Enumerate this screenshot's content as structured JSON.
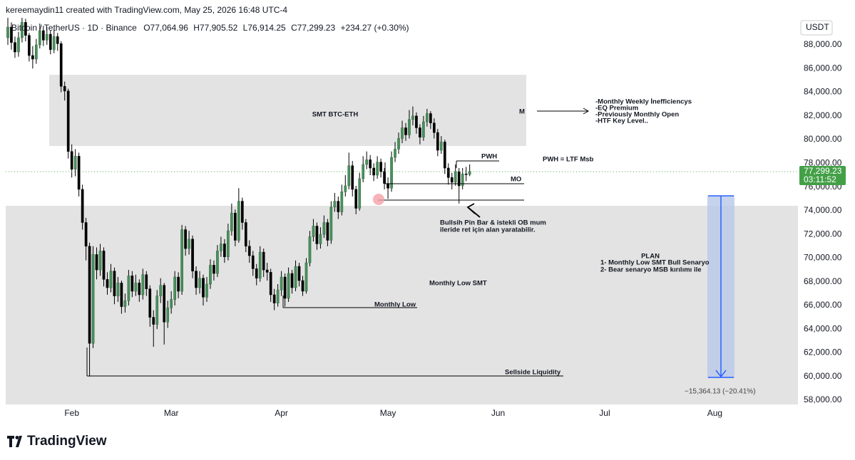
{
  "header": {
    "credit": "kereemaydin11 created with TradingView.com, May 25, 2026 16:48 UTC-4",
    "symbol": "Bitcoin / TetherUS · 1D · Binance",
    "open": "O77,064.96",
    "high": "H77,905.52",
    "low": "L76,914.25",
    "close": "C77,299.23",
    "change": "+234.27 (+0.30%)"
  },
  "price_scale": {
    "currency": "USDT",
    "last_price": "77,299.23",
    "countdown": "03:11:52"
  },
  "annotations": {
    "smt": "SMT BTC-ETH",
    "m": "M",
    "notes": [
      "-Monthly Weekly İnefficiencys",
      "-EQ Premium",
      "-Previously Monthly Open",
      "-HTF Key Level.."
    ],
    "pwh": "PWH",
    "pwh_note": "PWH = LTF Msb",
    "mo": "MO",
    "pin_bar": [
      "Bullsih Pin Bar & istekli OB mum",
      "ileride ret için alan yaratabilir."
    ],
    "plan": [
      "PLAN",
      "1- Monthly Low SMT Bull Senaryo",
      "2- Bear senaryo MSB kırılımı ile"
    ],
    "monthly_low_smt": "Monthly Low SMT",
    "monthly_low": "Monthly Low",
    "sellside": "Sellside Liquidity",
    "measure": "−15,364.13 (−20.41%)"
  },
  "logo": "TradingView",
  "chart_data": {
    "type": "candlestick",
    "up_color": "#4b8f5d",
    "down_color": "#000000",
    "xlim": [
      -0.6,
      222.4
    ],
    "xticks": [
      {
        "value": 18,
        "label": "Feb"
      },
      {
        "value": 46,
        "label": "Mar"
      },
      {
        "value": 77,
        "label": "Apr"
      },
      {
        "value": 107,
        "label": "May"
      },
      {
        "value": 138,
        "label": "Jun"
      },
      {
        "value": 168,
        "label": "Jul"
      },
      {
        "value": 199,
        "label": "Aug"
      }
    ],
    "ylim": [
      57640,
      90285
    ],
    "yticks": [
      {
        "value": 58000,
        "label": "58,000.00"
      },
      {
        "value": 60000,
        "label": "60,000.00"
      },
      {
        "value": 62000,
        "label": "62,000.00"
      },
      {
        "value": 64000,
        "label": "64,000.00"
      },
      {
        "value": 66000,
        "label": "66,000.00"
      },
      {
        "value": 68000,
        "label": "68,000.00"
      },
      {
        "value": 70000,
        "label": "70,000.00"
      },
      {
        "value": 72000,
        "label": "72,000.00"
      },
      {
        "value": 74000,
        "label": "74,000.00"
      },
      {
        "value": 76000,
        "label": "76,000.00"
      },
      {
        "value": 78000,
        "label": "78,000.00"
      },
      {
        "value": 80000,
        "label": "80,000.00"
      },
      {
        "value": 82000,
        "label": "82,000.00"
      },
      {
        "value": 84000,
        "label": "84,000.00"
      },
      {
        "value": 86000,
        "label": "86,000.00"
      },
      {
        "value": 88000,
        "label": "88,000.00"
      }
    ],
    "open": [
      88600,
      89500,
      88200,
      87400,
      88600,
      89900,
      88800,
      87100,
      86800,
      88000,
      89200,
      88400,
      88900,
      87600,
      88700,
      88100,
      84500,
      84100,
      79000,
      77500,
      78600,
      75800,
      73000,
      71000,
      62800,
      70300,
      69000,
      70600,
      68200,
      67500,
      68900,
      66800,
      67900,
      65900,
      66400,
      68500,
      67200,
      67900,
      66900,
      68600,
      67400,
      65000,
      64400,
      66800,
      67700,
      64600,
      65800,
      66500,
      68400,
      67200,
      72400,
      70800,
      71600,
      68900,
      67500,
      68300,
      66700,
      67800,
      69400,
      68700,
      70600,
      71200,
      70100,
      72300,
      73800,
      71500,
      74800,
      73000,
      71000,
      70200,
      69100,
      68300,
      70500,
      69000,
      68800,
      66900,
      66200,
      67300,
      68400,
      66600,
      68700,
      67500,
      69300,
      68100,
      67200,
      69600,
      71800,
      72700,
      71200,
      72000,
      73000,
      71500,
      74300,
      74800,
      73900,
      75600,
      76100,
      77800,
      75800,
      74200,
      76700,
      77900,
      78300,
      77600,
      77000,
      78100,
      77300,
      76300,
      75900,
      78500,
      79200,
      80100,
      81000,
      80400,
      81700,
      82000,
      81000,
      80200,
      81500,
      82200,
      81400,
      80600,
      79100,
      79800,
      77600,
      76800,
      76400,
      77300,
      76100,
      77100,
      77064.96
    ],
    "high": [
      90400,
      89900,
      88700,
      89100,
      90600,
      90200,
      89000,
      87900,
      88500,
      89800,
      89600,
      89500,
      89200,
      89300,
      89000,
      88300,
      84900,
      84300,
      79600,
      79200,
      78900,
      76200,
      73400,
      71300,
      71000,
      70900,
      71200,
      70900,
      68800,
      69500,
      69200,
      68400,
      68100,
      67000,
      69000,
      68900,
      68600,
      68200,
      69100,
      68900,
      67700,
      65600,
      67300,
      68300,
      67900,
      66400,
      67200,
      68900,
      68800,
      72800,
      72700,
      72300,
      71900,
      69300,
      68900,
      68600,
      68400,
      69900,
      69800,
      71100,
      71800,
      71600,
      72900,
      74600,
      74100,
      75900,
      75100,
      73300,
      71500,
      70600,
      69500,
      71000,
      70800,
      69600,
      69100,
      67400,
      67800,
      68900,
      68700,
      69200,
      69000,
      69800,
      69600,
      68500,
      70000,
      72300,
      73300,
      73000,
      72600,
      73600,
      73300,
      74800,
      75500,
      75200,
      76200,
      77000,
      78900,
      78200,
      76100,
      77200,
      78600,
      79000,
      78700,
      78000,
      78600,
      78400,
      77600,
      76800,
      79000,
      79800,
      80600,
      81600,
      81400,
      82500,
      82800,
      82300,
      81300,
      82000,
      82600,
      82400,
      81800,
      80900,
      80300,
      80000,
      78000,
      77200,
      77900,
      77600,
      77600,
      77700,
      77905.52
    ],
    "low": [
      88000,
      87600,
      86900,
      87000,
      88200,
      88300,
      86600,
      86000,
      86400,
      87700,
      87900,
      88000,
      87200,
      87300,
      87500,
      84000,
      83300,
      78400,
      76800,
      76900,
      75200,
      72400,
      69800,
      60000,
      62400,
      68200,
      68500,
      67600,
      66900,
      67100,
      66100,
      66300,
      65300,
      65400,
      66000,
      66700,
      66800,
      66300,
      66500,
      66800,
      64200,
      62500,
      64000,
      66200,
      62700,
      64100,
      65300,
      66000,
      66600,
      66900,
      70200,
      70300,
      68300,
      66900,
      67000,
      66000,
      66300,
      67400,
      68100,
      68400,
      70100,
      69600,
      69800,
      71900,
      71000,
      71300,
      72400,
      70500,
      69600,
      68500,
      67700,
      68000,
      68400,
      68100,
      66300,
      65600,
      65900,
      66800,
      65900,
      66300,
      67000,
      67200,
      67600,
      66800,
      67000,
      69300,
      71400,
      70700,
      70800,
      71700,
      71000,
      71200,
      73900,
      73300,
      73600,
      75200,
      75800,
      75200,
      73700,
      74000,
      76400,
      77500,
      77000,
      76500,
      76700,
      76800,
      75800,
      75000,
      75600,
      78100,
      78800,
      79700,
      79900,
      80100,
      81200,
      80500,
      79600,
      79900,
      81100,
      80900,
      80100,
      78600,
      78800,
      77100,
      76200,
      75800,
      76100,
      74600,
      75800,
      76500,
      76914.25
    ],
    "close": [
      89500,
      88200,
      87400,
      88600,
      89900,
      88800,
      87100,
      86800,
      88000,
      89200,
      88400,
      88900,
      87600,
      88700,
      88100,
      84500,
      84100,
      79000,
      77500,
      78600,
      75800,
      73000,
      71000,
      62800,
      70300,
      69000,
      70600,
      68200,
      67500,
      68900,
      66800,
      67900,
      65900,
      66400,
      68500,
      67200,
      67900,
      66900,
      68600,
      67400,
      65000,
      64400,
      66800,
      67700,
      64600,
      65800,
      66500,
      68400,
      67200,
      72400,
      70800,
      71600,
      68900,
      67500,
      68300,
      66700,
      67800,
      69400,
      68700,
      70600,
      71200,
      70100,
      72300,
      73800,
      71500,
      74800,
      73000,
      71000,
      70200,
      69100,
      68300,
      70500,
      69000,
      68800,
      66900,
      66200,
      67300,
      68400,
      66600,
      68700,
      67500,
      69300,
      68100,
      67200,
      69600,
      71800,
      72700,
      71200,
      72000,
      73000,
      71500,
      74300,
      74800,
      73900,
      75600,
      76100,
      77800,
      75800,
      74200,
      76700,
      77900,
      78300,
      77600,
      77000,
      78100,
      77300,
      76300,
      75900,
      78500,
      79200,
      80100,
      81000,
      80400,
      81700,
      82000,
      81000,
      80200,
      81500,
      82200,
      81400,
      80600,
      79100,
      79800,
      77600,
      76800,
      76400,
      77300,
      76100,
      77100,
      77064.96,
      77299.23
    ]
  }
}
